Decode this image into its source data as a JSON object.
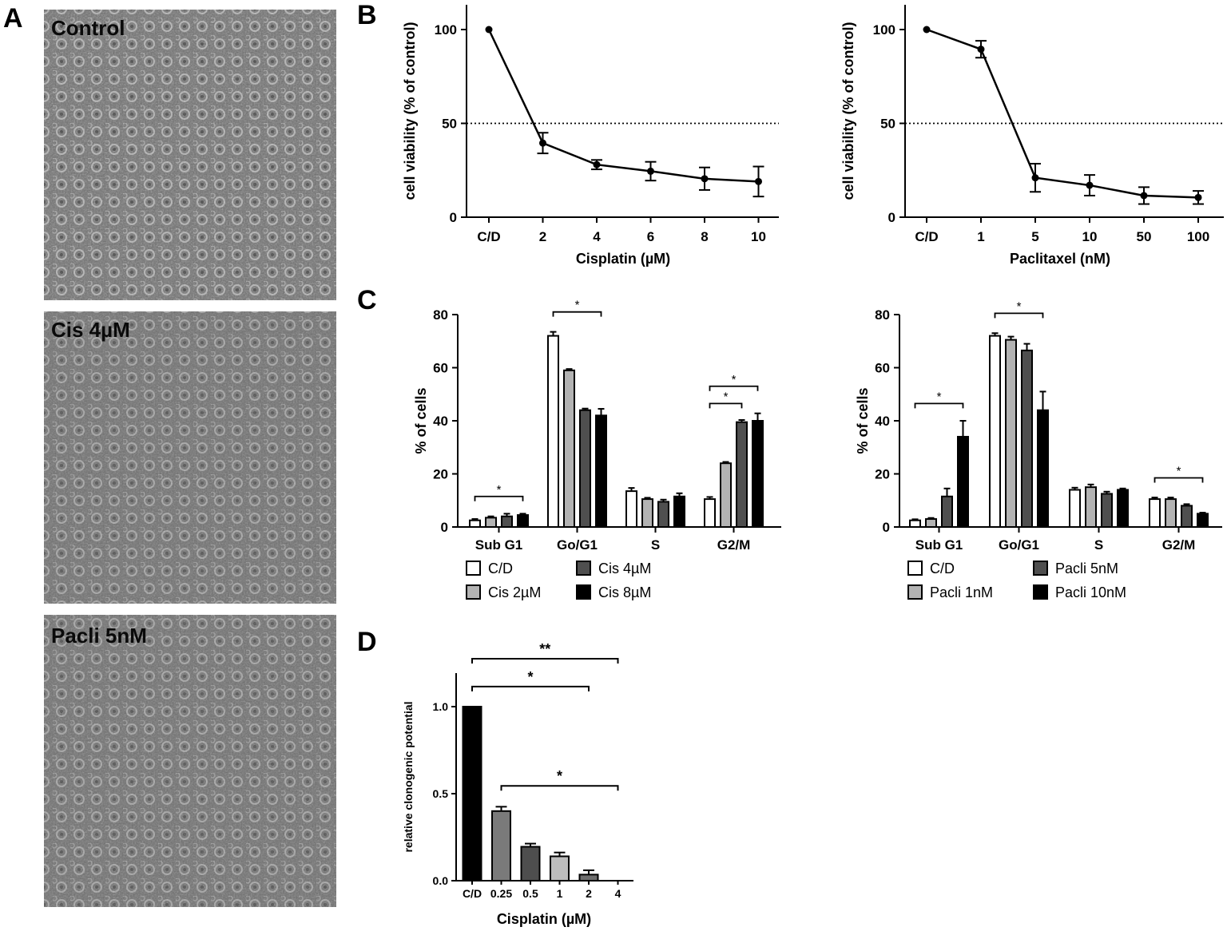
{
  "panel_letters": {
    "A": "A",
    "B": "B",
    "C": "C",
    "D": "D"
  },
  "photos": [
    {
      "label": "Control"
    },
    {
      "label": "Cis 4µM"
    },
    {
      "label": "Pacli 5nM"
    }
  ],
  "chart_data": [
    {
      "type": "line",
      "id": "B1",
      "ylabel": "cell viability (% of control)",
      "xlabel": "Cisplatin (µM)",
      "categories": [
        "C/D",
        "2",
        "4",
        "6",
        "8",
        "10"
      ],
      "values": [
        100,
        39.5,
        28,
        24.5,
        20.5,
        19
      ],
      "errors": [
        0,
        5.5,
        2.5,
        5,
        6,
        8
      ],
      "ylim": [
        0,
        100
      ],
      "yticks": [
        "0",
        "50",
        "100"
      ],
      "reference_line": 50
    },
    {
      "type": "line",
      "id": "B2",
      "ylabel": "cell viability (% of control)",
      "xlabel": "Paclitaxel (nM)",
      "categories": [
        "C/D",
        "1",
        "5",
        "10",
        "50",
        "100"
      ],
      "values": [
        100,
        89.5,
        21,
        17,
        11.5,
        10.5
      ],
      "errors": [
        0,
        4.5,
        7.5,
        5.5,
        4.5,
        3.5
      ],
      "ylim": [
        0,
        100
      ],
      "yticks": [
        "0",
        "50",
        "100"
      ],
      "reference_line": 50
    },
    {
      "type": "bar",
      "id": "C1",
      "ylabel": "% of cells",
      "categories": [
        "Sub G1",
        "Go/G1",
        "S",
        "G2/M"
      ],
      "ylim": [
        0,
        80
      ],
      "yticks": [
        "0",
        "20",
        "40",
        "60",
        "80"
      ],
      "series": [
        {
          "name": "C/D",
          "values": [
            2.5,
            72,
            13.5,
            10.5
          ],
          "errors": [
            0.5,
            1.5,
            1.2,
            0.8
          ]
        },
        {
          "name": "Cis 2µM",
          "values": [
            3.5,
            59,
            10.5,
            24
          ],
          "errors": [
            0.5,
            0.5,
            0.5,
            0.5
          ]
        },
        {
          "name": "Cis 4µM",
          "values": [
            4,
            44,
            9.5,
            39.5
          ],
          "errors": [
            1,
            0.6,
            0.8,
            0.8
          ]
        },
        {
          "name": "Cis 8µM",
          "values": [
            4.5,
            42,
            11.5,
            40
          ],
          "errors": [
            0.5,
            2.5,
            1.2,
            2.8
          ]
        }
      ],
      "significance": [
        {
          "label": "*",
          "from": [
            0,
            0
          ],
          "to": [
            0,
            3
          ],
          "y": 11.5
        },
        {
          "label": "*",
          "from": [
            1,
            0
          ],
          "to": [
            1,
            3
          ],
          "y": 81
        },
        {
          "label": "*",
          "from": [
            3,
            0
          ],
          "to": [
            3,
            2
          ],
          "y": 46.5
        },
        {
          "label": "*",
          "from": [
            3,
            0
          ],
          "to": [
            3,
            3
          ],
          "y": 53
        }
      ]
    },
    {
      "type": "bar",
      "id": "C2",
      "ylabel": "% of cells",
      "categories": [
        "Sub G1",
        "Go/G1",
        "S",
        "G2/M"
      ],
      "ylim": [
        0,
        80
      ],
      "yticks": [
        "0",
        "20",
        "40",
        "60",
        "80"
      ],
      "series": [
        {
          "name": "C/D",
          "values": [
            2.5,
            72,
            14,
            10.5
          ],
          "errors": [
            0.4,
            1,
            0.8,
            0.6
          ]
        },
        {
          "name": "Pacli 1nM",
          "values": [
            3,
            70.5,
            15,
            10.5
          ],
          "errors": [
            0.4,
            1.2,
            1,
            0.6
          ]
        },
        {
          "name": "Pacli 5nM",
          "values": [
            11.5,
            66.5,
            12.5,
            8
          ],
          "errors": [
            3,
            2.5,
            0.8,
            0.6
          ]
        },
        {
          "name": "Pacli 10nM",
          "values": [
            34,
            44,
            14,
            5
          ],
          "errors": [
            6,
            7,
            0.5,
            0.4
          ]
        }
      ],
      "significance": [
        {
          "label": "*",
          "from": [
            0,
            0
          ],
          "to": [
            0,
            3
          ],
          "y": 46.5
        },
        {
          "label": "*",
          "from": [
            1,
            0
          ],
          "to": [
            1,
            3
          ],
          "y": 80.5
        },
        {
          "label": "*",
          "from": [
            3,
            0
          ],
          "to": [
            3,
            3
          ],
          "y": 18.5
        }
      ]
    },
    {
      "type": "bar",
      "id": "D",
      "ylabel": "relative clonogenic potential",
      "xlabel": "Cisplatin (µM)",
      "categories": [
        "C/D",
        "0.25",
        "0.5",
        "1",
        "2",
        "4"
      ],
      "values": [
        1.0,
        0.4,
        0.195,
        0.14,
        0.035,
        0
      ],
      "errors": [
        0,
        0.025,
        0.018,
        0.022,
        0.025,
        0
      ],
      "fills": [
        "#000000",
        "#7a7a7a",
        "#4e4e4e",
        "#bdbdbd",
        "#6e6e6e",
        "#000000"
      ],
      "ylim": [
        0,
        1.2
      ],
      "yticks": [
        "0.0",
        "0.5",
        "1.0"
      ],
      "significance": [
        {
          "label": "**",
          "from": 0,
          "to": 5,
          "y": 1.275
        },
        {
          "label": "*",
          "from": 0,
          "to": 4,
          "y": 1.115
        },
        {
          "label": "*",
          "from": 1,
          "to": 5,
          "y": 0.545
        }
      ]
    }
  ],
  "colors": {
    "C/D": "#ffffff",
    "Cis 2µM": "#b3b3b3",
    "Cis 4µM": "#4f4f4f",
    "Cis 8µM": "#000000",
    "Pacli 1nM": "#b3b3b3",
    "Pacli 5nM": "#4f4f4f",
    "Pacli 10nM": "#000000",
    "photo_background": "#6d6d6d"
  }
}
